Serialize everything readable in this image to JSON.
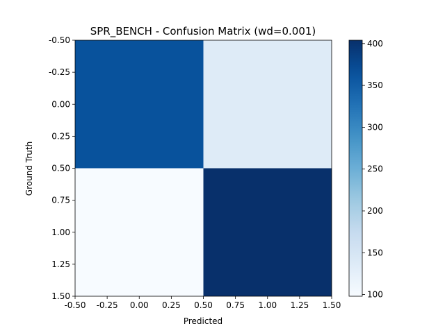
{
  "chart_data": {
    "type": "heatmap",
    "title": "SPR_BENCH - Confusion Matrix (wd=0.001)",
    "xlabel": "Predicted",
    "ylabel": "Ground Truth",
    "xlim": [
      -0.5,
      1.5
    ],
    "ylim": [
      1.5,
      -0.5
    ],
    "x_ticks": [
      "-0.50",
      "-0.25",
      "0.00",
      "0.25",
      "0.50",
      "0.75",
      "1.00",
      "1.25",
      "1.50"
    ],
    "y_ticks": [
      "-0.50",
      "-0.25",
      "0.00",
      "0.25",
      "0.50",
      "0.75",
      "1.00",
      "1.25",
      "1.50"
    ],
    "matrix": [
      [
        365,
        136
      ],
      [
        98,
        404
      ]
    ],
    "colormap": "Blues",
    "colorbar": {
      "min": 98,
      "max": 404,
      "ticks": [
        "100",
        "150",
        "200",
        "250",
        "300",
        "350",
        "400"
      ]
    },
    "grid": false
  }
}
